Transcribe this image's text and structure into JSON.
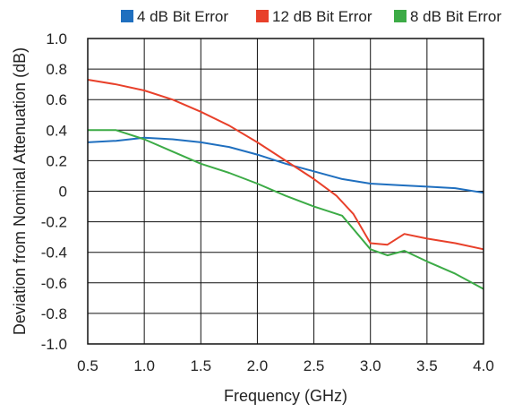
{
  "chart_data": {
    "type": "line",
    "xlabel": "Frequency (GHz)",
    "ylabel": "Deviation from Nominal Attenuation (dB)",
    "xlim": [
      0.5,
      4.0
    ],
    "ylim": [
      -1.0,
      1.0
    ],
    "x_ticks": [
      "0.5",
      "1.0",
      "1.5",
      "2.0",
      "2.5",
      "3.0",
      "3.5",
      "4.0"
    ],
    "y_ticks": [
      "1.0",
      "0.8",
      "0.6",
      "0.4",
      "0.2",
      "0",
      "-0.2",
      "-0.4",
      "-0.6",
      "-0.8",
      "-1.0"
    ],
    "grid": true,
    "legend_position": "top",
    "series": [
      {
        "name": "4 dB Bit Error",
        "color": "#1f6fbf",
        "x": [
          0.5,
          0.75,
          1.0,
          1.25,
          1.5,
          1.75,
          2.0,
          2.25,
          2.5,
          2.75,
          3.0,
          3.25,
          3.5,
          3.75,
          4.0
        ],
        "y": [
          0.32,
          0.33,
          0.35,
          0.34,
          0.32,
          0.29,
          0.24,
          0.18,
          0.13,
          0.08,
          0.05,
          0.04,
          0.03,
          0.02,
          -0.01
        ]
      },
      {
        "name": "12 dB Bit Error",
        "color": "#e8402a",
        "x": [
          0.5,
          0.75,
          1.0,
          1.25,
          1.5,
          1.75,
          2.0,
          2.25,
          2.5,
          2.7,
          2.85,
          3.0,
          3.15,
          3.3,
          3.5,
          3.75,
          4.0
        ],
        "y": [
          0.73,
          0.7,
          0.66,
          0.6,
          0.52,
          0.43,
          0.32,
          0.2,
          0.08,
          -0.03,
          -0.15,
          -0.34,
          -0.35,
          -0.28,
          -0.31,
          -0.34,
          -0.38
        ]
      },
      {
        "name": "8 dB Bit Error",
        "color": "#3cab46",
        "x": [
          0.5,
          0.75,
          1.0,
          1.25,
          1.5,
          1.75,
          2.0,
          2.25,
          2.5,
          2.75,
          3.0,
          3.15,
          3.3,
          3.5,
          3.75,
          4.0
        ],
        "y": [
          0.4,
          0.4,
          0.34,
          0.26,
          0.18,
          0.12,
          0.05,
          -0.03,
          -0.1,
          -0.16,
          -0.38,
          -0.42,
          -0.39,
          -0.46,
          -0.54,
          -0.64
        ]
      }
    ]
  }
}
